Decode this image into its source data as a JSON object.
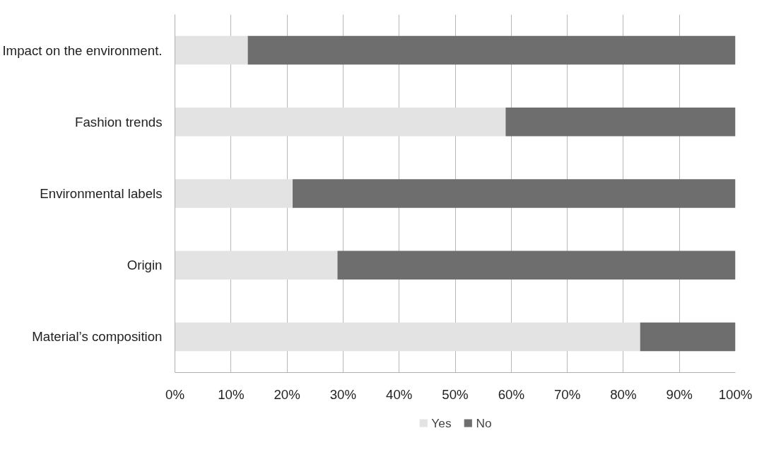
{
  "chart_data": {
    "type": "bar",
    "orientation": "horizontal",
    "stacked": true,
    "categories": [
      "Impact on the environment.",
      "Fashion trends",
      "Environmental labels",
      "Origin",
      "Material’s composition"
    ],
    "series": [
      {
        "name": "Yes",
        "color": "#e3e3e3",
        "values": [
          13,
          59,
          21,
          29,
          83
        ]
      },
      {
        "name": "No",
        "color": "#6e6e6e",
        "values": [
          87,
          41,
          79,
          71,
          17
        ]
      }
    ],
    "xlim": [
      0,
      100
    ],
    "xticks": [
      {
        "value": 0,
        "label": "0%"
      },
      {
        "value": 10,
        "label": "10%"
      },
      {
        "value": 20,
        "label": "20%"
      },
      {
        "value": 30,
        "label": "30%"
      },
      {
        "value": 40,
        "label": "40%"
      },
      {
        "value": 50,
        "label": "50%"
      },
      {
        "value": 60,
        "label": "60%"
      },
      {
        "value": 70,
        "label": "70%"
      },
      {
        "value": 80,
        "label": "80%"
      },
      {
        "value": 90,
        "label": "90%"
      },
      {
        "value": 100,
        "label": "100%"
      }
    ],
    "grid": "x",
    "legend": "bottom"
  }
}
